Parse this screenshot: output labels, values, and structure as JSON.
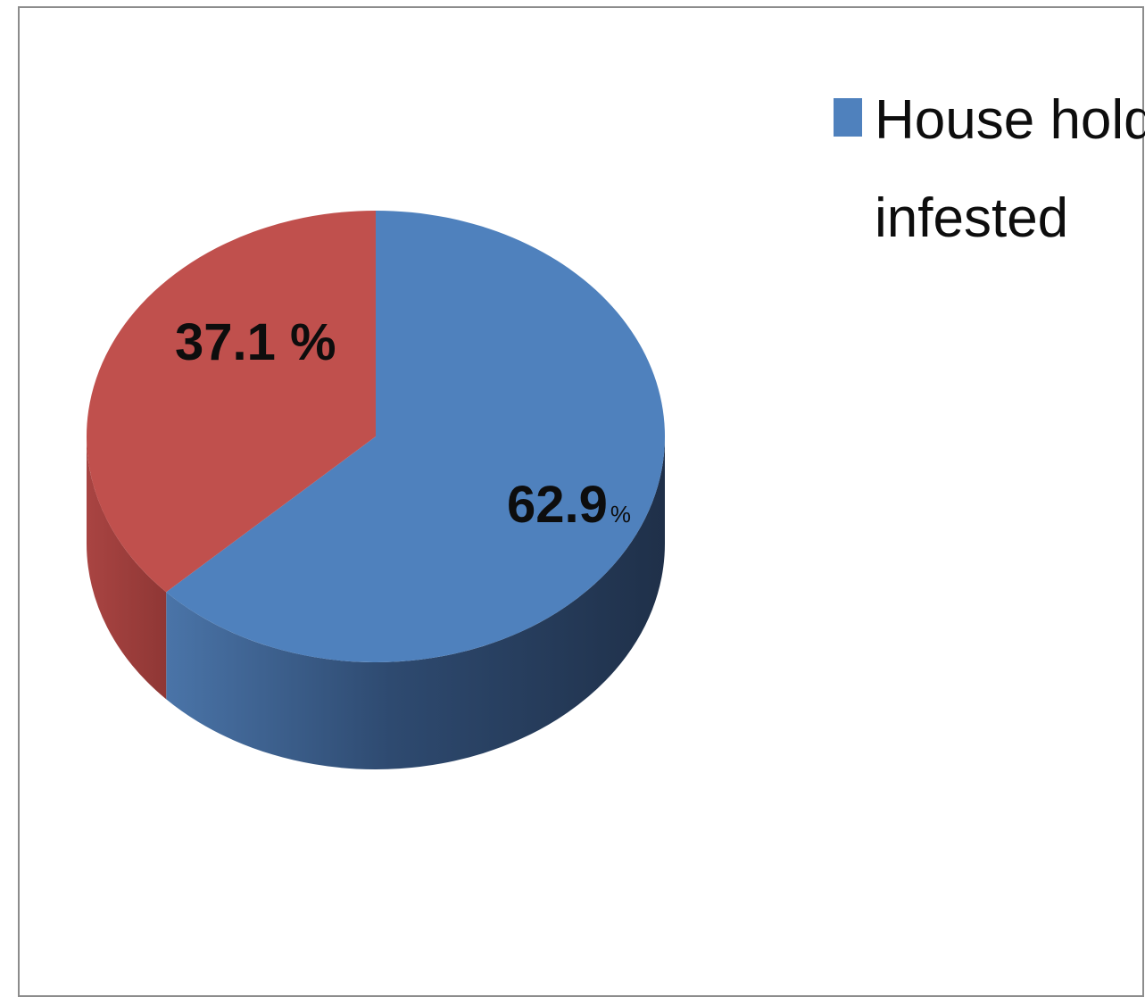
{
  "chart_data": {
    "type": "pie",
    "style": "3d",
    "slices": [
      {
        "name": "House holds infested",
        "value": 62.9,
        "label_number": "62.9",
        "label_unit": "%",
        "color": "#4f81bd"
      },
      {
        "name": "",
        "value": 37.1,
        "label_number": "37.1",
        "label_unit": " %",
        "color": "#c0504d"
      }
    ],
    "legend": {
      "position": "top-right",
      "entries": [
        {
          "line1": "House holds",
          "line2": "infested",
          "color": "#4f81bd"
        }
      ]
    }
  }
}
